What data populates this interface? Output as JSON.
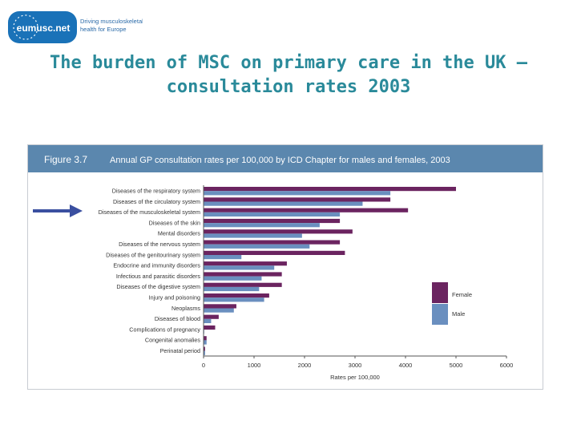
{
  "logo": {
    "badge_text": "eumusc.net",
    "tagline_1": "Driving musculoskeletal",
    "tagline_2": "health for Europe"
  },
  "slide": {
    "title_line_1": "The burden of MSC on primary care in the UK –",
    "title_line_2": "consultation rates 2003"
  },
  "colors": {
    "title": "#2a8a9a",
    "header_band": "#5b87ae",
    "female": "#6b2460",
    "male": "#6a8fbf",
    "arrow": "#3a4fa0",
    "logo_blue": "#1a72b8"
  },
  "chart_data": {
    "type": "bar",
    "orientation": "horizontal",
    "figure_label": "Figure 3.7",
    "title": "Annual GP consultation rates per 100,000 by ICD Chapter for males and females, 2003",
    "xlabel": "Rates per 100,000",
    "xlim": [
      0,
      6000
    ],
    "xticks": [
      "0",
      "1000",
      "2000",
      "3000",
      "4000",
      "5000",
      "6000"
    ],
    "xtick_values": [
      0,
      1000,
      2000,
      3000,
      4000,
      5000,
      6000
    ],
    "grid": false,
    "legend_position": "right",
    "highlighted_category": "Diseases of the musculoskeletal system",
    "categories": [
      "Diseases of the respiratory system",
      "Diseases of the circulatory system",
      "Diseases of the musculoskeletal system",
      "Diseases of the skin",
      "Mental disorders",
      "Diseases of the nervous system",
      "Diseases of the genitourinary system",
      "Endocrine and immunity disorders",
      "Infectious and parasitic disorders",
      "Diseases of the digestive system",
      "Injury and poisoning",
      "Neoplasms",
      "Diseases of blood",
      "Complications of pregnancy",
      "Congenital anomalies",
      "Perinatal period"
    ],
    "series": [
      {
        "name": "Female",
        "values": [
          5000,
          3700,
          4050,
          2700,
          2950,
          2700,
          2800,
          1650,
          1550,
          1550,
          1300,
          650,
          300,
          230,
          60,
          30
        ]
      },
      {
        "name": "Male",
        "values": [
          3700,
          3150,
          2700,
          2300,
          1950,
          2100,
          750,
          1400,
          1150,
          1100,
          1200,
          600,
          150,
          10,
          60,
          30
        ]
      }
    ]
  }
}
